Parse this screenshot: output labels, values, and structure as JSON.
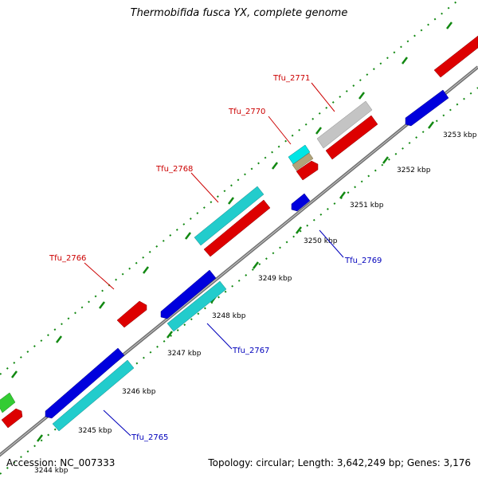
{
  "title": "Thermobifida fusca YX, complete genome",
  "footer": {
    "accession": "Accession: NC_007333",
    "topology": "Topology: circular; Length: 3,642,249 bp; Genes: 3,176"
  },
  "colors": {
    "forward_label": "#cc0000",
    "reverse_label": "#0000bb",
    "backbone": "#777777",
    "ticks": "#118811"
  },
  "tick_labels": [
    "3244 kbp",
    "3245 kbp",
    "3246 kbp",
    "3247 kbp",
    "3248 kbp",
    "3249 kbp",
    "3250 kbp",
    "3251 kbp",
    "3252 kbp",
    "3253 kbp"
  ],
  "gene_labels": [
    {
      "text": "Tfu_2771",
      "strand": "forward"
    },
    {
      "text": "Tfu_2770",
      "strand": "forward"
    },
    {
      "text": "Tfu_2768",
      "strand": "forward"
    },
    {
      "text": "Tfu_2766",
      "strand": "forward"
    },
    {
      "text": "Tfu_2769",
      "strand": "reverse"
    },
    {
      "text": "Tfu_2767",
      "strand": "reverse"
    },
    {
      "text": "Tfu_2765",
      "strand": "reverse"
    }
  ]
}
